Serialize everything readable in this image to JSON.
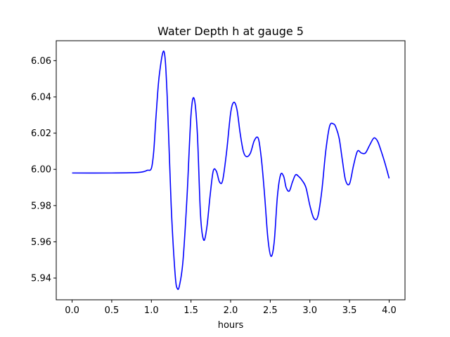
{
  "chart_data": {
    "type": "line",
    "title": "Water Depth h at gauge 5",
    "xlabel": "hours",
    "ylabel": "",
    "xlim": [
      -0.2,
      4.2
    ],
    "ylim": [
      5.928,
      6.071
    ],
    "xticks": [
      0.0,
      0.5,
      1.0,
      1.5,
      2.0,
      2.5,
      3.0,
      3.5,
      4.0
    ],
    "xtick_labels": [
      "0.0",
      "0.5",
      "1.0",
      "1.5",
      "2.0",
      "2.5",
      "3.0",
      "3.5",
      "4.0"
    ],
    "yticks": [
      5.94,
      5.96,
      5.98,
      6.0,
      6.02,
      6.04,
      6.06
    ],
    "ytick_labels": [
      "5.94",
      "5.96",
      "5.98",
      "6.00",
      "6.02",
      "6.04",
      "6.06"
    ],
    "grid": false,
    "series": [
      {
        "color": "#0000ff",
        "x": [
          0.0,
          0.5,
          0.8,
          0.9,
          0.95,
          1.0,
          1.03,
          1.06,
          1.1,
          1.16,
          1.2,
          1.25,
          1.3,
          1.33,
          1.36,
          1.4,
          1.45,
          1.5,
          1.54,
          1.58,
          1.62,
          1.66,
          1.7,
          1.74,
          1.78,
          1.82,
          1.86,
          1.9,
          1.95,
          2.0,
          2.04,
          2.08,
          2.12,
          2.16,
          2.2,
          2.25,
          2.3,
          2.35,
          2.39,
          2.43,
          2.47,
          2.51,
          2.55,
          2.59,
          2.63,
          2.67,
          2.7,
          2.74,
          2.78,
          2.82,
          2.86,
          2.9,
          2.95,
          3.0,
          3.05,
          3.1,
          3.15,
          3.2,
          3.25,
          3.3,
          3.33,
          3.37,
          3.41,
          3.45,
          3.5,
          3.55,
          3.6,
          3.65,
          3.7,
          3.75,
          3.8,
          3.83,
          3.86,
          3.9,
          3.95,
          4.0
        ],
        "y": [
          5.998,
          5.998,
          5.9982,
          5.9987,
          5.9995,
          6.0005,
          6.01,
          6.03,
          6.052,
          6.065,
          6.04,
          5.98,
          5.942,
          5.934,
          5.937,
          5.95,
          5.985,
          6.03,
          6.039,
          6.02,
          5.975,
          5.961,
          5.968,
          5.985,
          5.999,
          5.999,
          5.993,
          5.994,
          6.01,
          6.031,
          6.037,
          6.033,
          6.02,
          6.01,
          6.007,
          6.009,
          6.016,
          6.017,
          6.005,
          5.985,
          5.962,
          5.952,
          5.96,
          5.985,
          5.997,
          5.996,
          5.99,
          5.988,
          5.993,
          5.997,
          5.996,
          5.994,
          5.99,
          5.98,
          5.973,
          5.974,
          5.988,
          6.01,
          6.024,
          6.025,
          6.023,
          6.017,
          6.005,
          5.994,
          5.992,
          6.002,
          6.01,
          6.009,
          6.009,
          6.013,
          6.017,
          6.017,
          6.015,
          6.01,
          6.003,
          5.995
        ]
      }
    ]
  }
}
